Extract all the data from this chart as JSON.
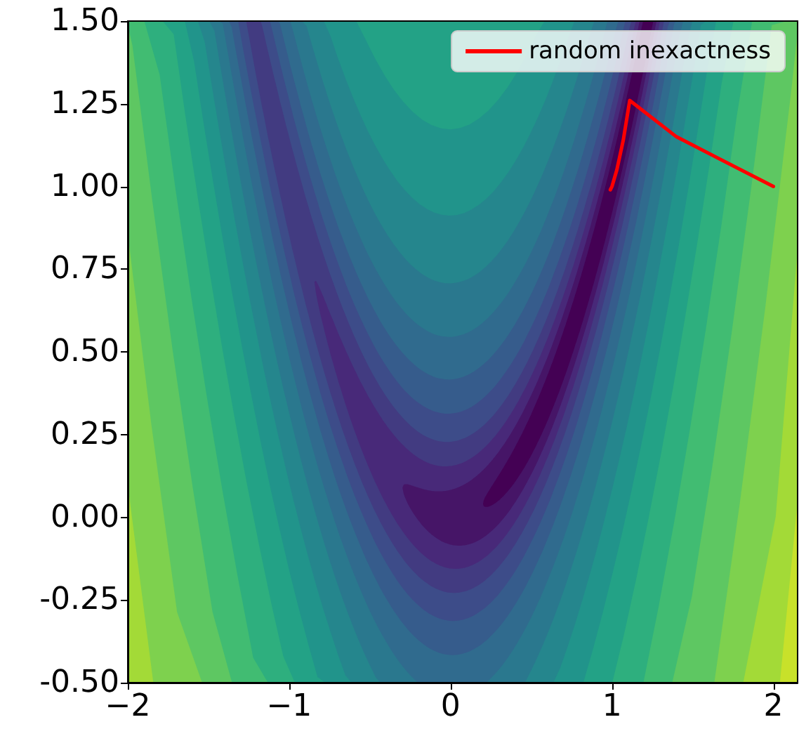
{
  "chart_data": {
    "type": "line",
    "x": [
      2.0,
      1.4,
      1.11,
      1.07,
      1.03,
      1.0,
      0.99
    ],
    "series": [
      {
        "name": "random inexactness",
        "color": "#ff0000",
        "values": [
          1.0,
          1.15,
          1.26,
          1.14,
          1.05,
          1.0,
          0.99
        ]
      }
    ],
    "xlim": [
      -2,
      2.15
    ],
    "xticks": [
      {
        "value": -2,
        "label": "−2"
      },
      {
        "value": -1,
        "label": "−1"
      },
      0,
      1,
      2
    ],
    "ylim": [
      -0.5,
      1.5
    ],
    "yticks": [
      {
        "value": -0.5,
        "label": "-0.50"
      },
      {
        "value": -0.25,
        "label": "-0.25"
      },
      {
        "value": 0,
        "label": "0.00"
      },
      {
        "value": 0.25,
        "label": "0.25"
      },
      {
        "value": 0.5,
        "label": "0.50"
      },
      {
        "value": 0.75,
        "label": "0.75"
      },
      {
        "value": 1,
        "label": "1.00"
      },
      {
        "value": 1.25,
        "label": "1.25"
      },
      {
        "value": 1.5,
        "label": "1.50"
      }
    ],
    "legend": "top right",
    "marker": "none",
    "line_style": "solid",
    "grid": false
  }
}
